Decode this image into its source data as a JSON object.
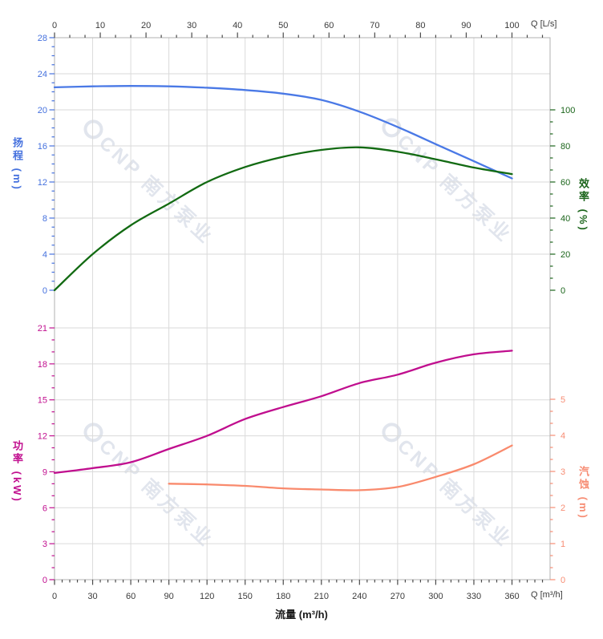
{
  "watermark": {
    "brand": "CNP",
    "name": "南方泵业"
  },
  "axes": {
    "top_flow": {
      "label": "Q [L/s]",
      "color": "#3b3b3b",
      "ticks": [
        0,
        10,
        20,
        30,
        40,
        50,
        60,
        70,
        80,
        90,
        100
      ],
      "minor_div": 3
    },
    "bottom_flow": {
      "label": "Q [m³/h]",
      "title": "流量 (m³/h)",
      "color": "#3b3b3b",
      "ticks": [
        0,
        30,
        60,
        90,
        120,
        150,
        180,
        210,
        240,
        270,
        300,
        330,
        360
      ],
      "minor_div": 5
    },
    "head": {
      "label": "扬程 (m)",
      "color": "#4571de",
      "ticks": [
        0,
        4,
        8,
        12,
        16,
        20,
        24,
        28
      ],
      "minor_div": 4
    },
    "efficiency": {
      "label": "效率 (%)",
      "color": "#1b651b",
      "ticks": [
        0,
        20,
        40,
        60,
        80,
        100
      ],
      "minor_div": 3
    },
    "power": {
      "label": "功率 (kW)",
      "color": "#c10f8f",
      "ticks": [
        0,
        3,
        6,
        9,
        12,
        15,
        18,
        21
      ],
      "minor_div": 3
    },
    "npsh": {
      "label": "汽蚀 (m)",
      "color": "#f78d74",
      "ticks": [
        0,
        1,
        2,
        3,
        4,
        5
      ],
      "minor_div": 3
    }
  },
  "chart_data": {
    "type": "line",
    "title": "",
    "xlabel": "流量 (m³/h)",
    "x_secondary_label": "Q [L/s]",
    "x_range_m3h": [
      0,
      390
    ],
    "x_range_Ls": [
      0,
      108.3
    ],
    "grid": true,
    "panels": [
      {
        "name": "top",
        "left_axis": "head",
        "left_range": [
          0,
          28
        ],
        "right_axis": "efficiency",
        "right_range": [
          0,
          140
        ]
      },
      {
        "name": "bottom",
        "left_axis": "power",
        "left_range": [
          0,
          21
        ],
        "right_axis": "npsh",
        "right_range": [
          0,
          7
        ]
      }
    ],
    "series": [
      {
        "name": "head",
        "unit": "m",
        "panel": "top",
        "axis": "head",
        "color": "#4a79e6",
        "x": [
          0,
          30,
          60,
          90,
          120,
          150,
          180,
          210,
          240,
          270,
          300,
          330,
          360
        ],
        "y": [
          22.5,
          22.6,
          22.65,
          22.6,
          22.45,
          22.2,
          21.8,
          21.1,
          19.8,
          18.1,
          16.2,
          14.3,
          12.4
        ]
      },
      {
        "name": "efficiency",
        "unit": "%",
        "panel": "top",
        "axis": "efficiency",
        "color": "#126a12",
        "x": [
          0,
          30,
          60,
          90,
          120,
          150,
          180,
          210,
          240,
          270,
          300,
          330,
          360
        ],
        "y": [
          0,
          20,
          36,
          48,
          60,
          68.3,
          74,
          77.8,
          79.2,
          76.8,
          72.6,
          68,
          64.4
        ]
      },
      {
        "name": "power",
        "unit": "kW",
        "panel": "bottom",
        "axis": "power",
        "color": "#c00e8e",
        "x": [
          0,
          30,
          60,
          90,
          120,
          150,
          180,
          210,
          240,
          270,
          300,
          330,
          360
        ],
        "y": [
          8.9,
          9.3,
          9.8,
          10.9,
          12.0,
          13.4,
          14.4,
          15.3,
          16.4,
          17.1,
          18.1,
          18.8,
          19.1
        ]
      },
      {
        "name": "npsh",
        "unit": "m",
        "panel": "bottom",
        "axis": "npsh",
        "color": "#f98a6d",
        "x": [
          90,
          120,
          150,
          180,
          210,
          240,
          270,
          300,
          330,
          360
        ],
        "y": [
          2.66,
          2.64,
          2.6,
          2.53,
          2.5,
          2.48,
          2.57,
          2.85,
          3.2,
          3.72
        ]
      }
    ]
  }
}
